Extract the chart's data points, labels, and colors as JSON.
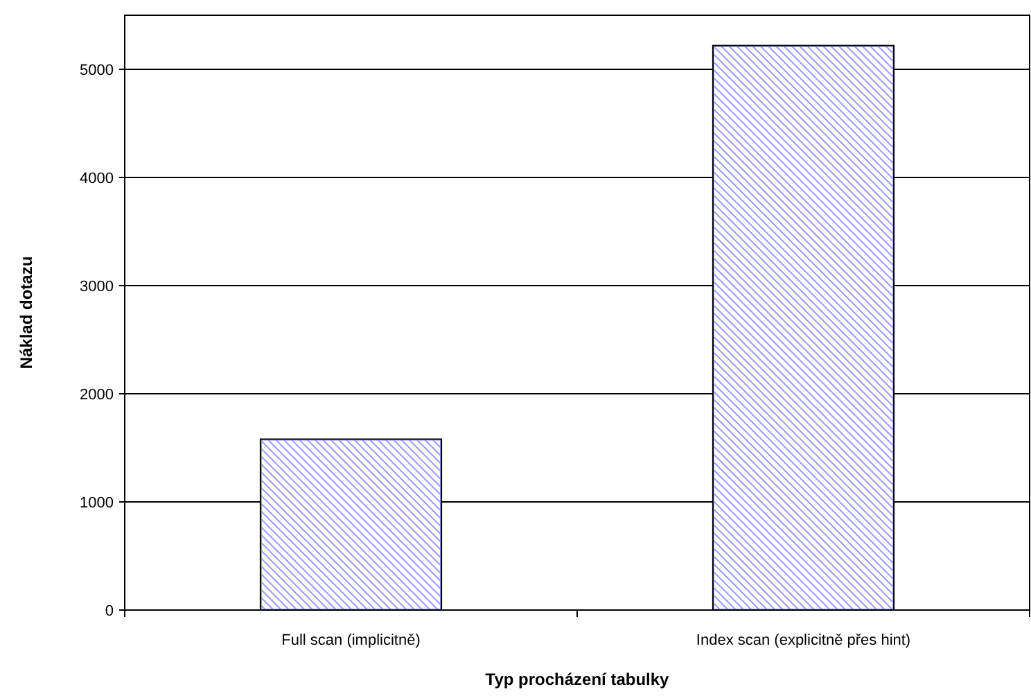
{
  "chart_data": {
    "type": "bar",
    "xlabel": "Typ procházení tabulky",
    "ylabel": "Náklad dotazu",
    "categories": [
      "Full scan (implicitně)",
      "Index scan (explicitně přes hint)"
    ],
    "values": [
      1580,
      5220
    ],
    "color": "#9999ff",
    "ylim": [
      0,
      5500
    ],
    "yticks": [
      0,
      1000,
      2000,
      3000,
      4000,
      5000
    ],
    "grid": "y"
  }
}
